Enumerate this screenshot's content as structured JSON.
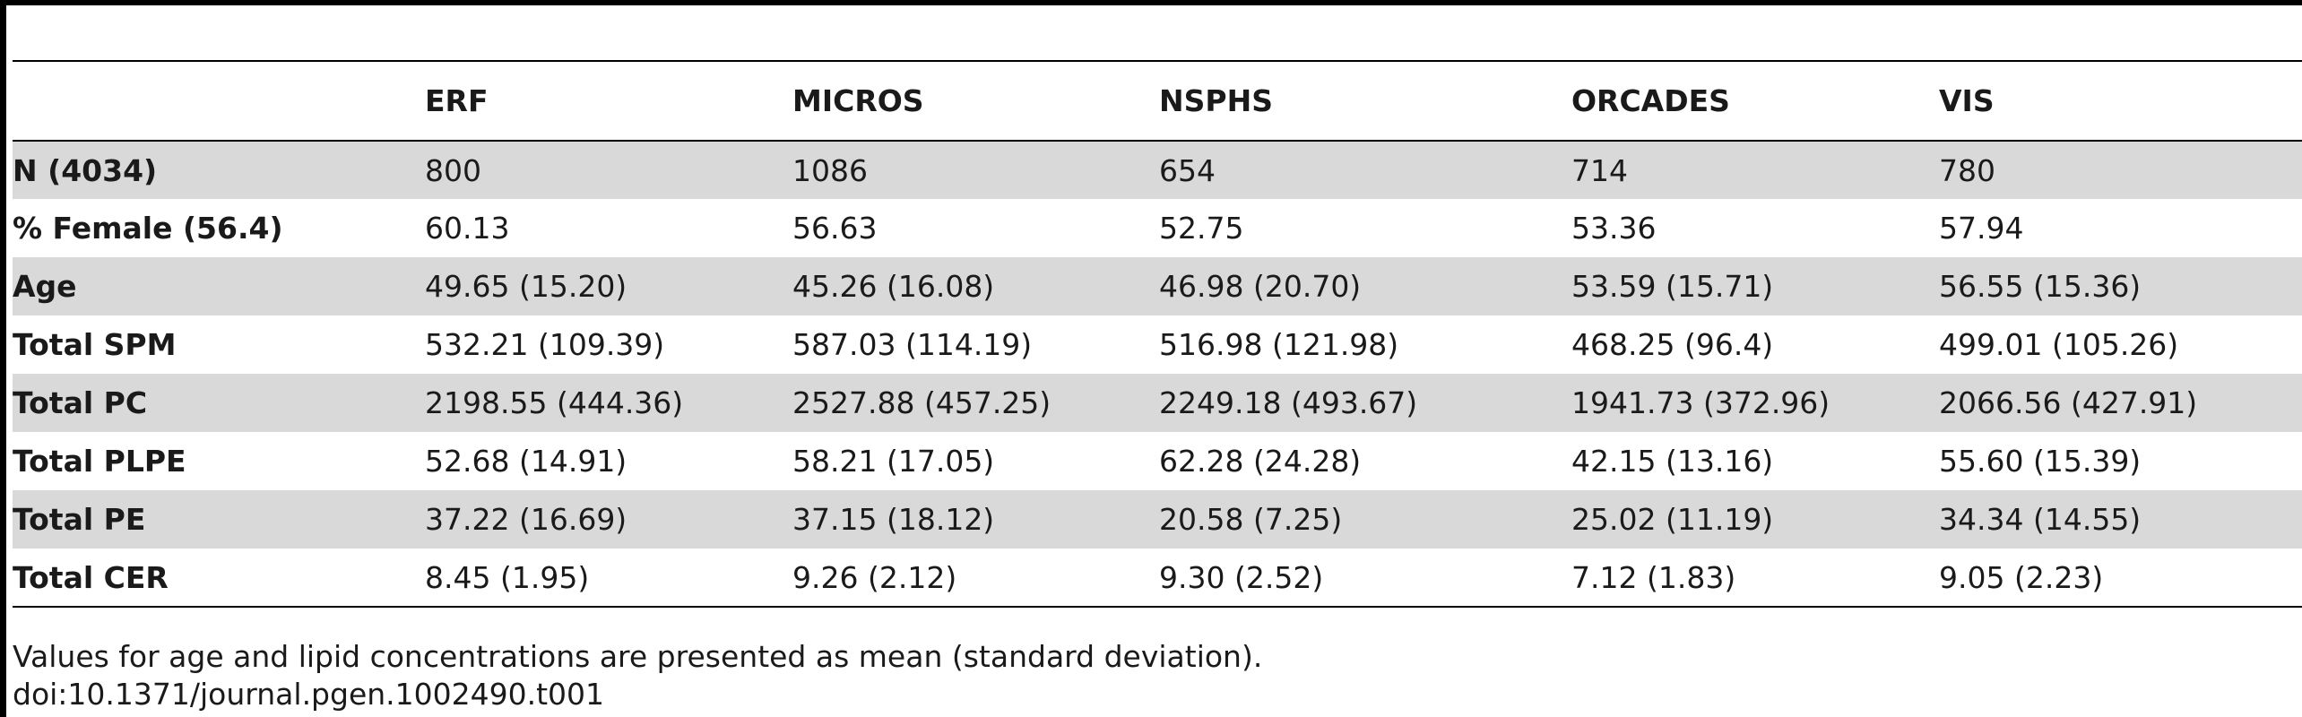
{
  "table": {
    "columns": [
      "",
      "ERF",
      "MICROS",
      "NSPHS",
      "ORCADES",
      "VIS"
    ],
    "rows": [
      [
        "N (4034)",
        "800",
        "1086",
        "654",
        "714",
        "780"
      ],
      [
        "% Female (56.4)",
        "60.13",
        "56.63",
        "52.75",
        "53.36",
        "57.94"
      ],
      [
        "Age",
        "49.65 (15.20)",
        "45.26 (16.08)",
        "46.98 (20.70)",
        "53.59 (15.71)",
        "56.55 (15.36)"
      ],
      [
        "Total SPM",
        "532.21 (109.39)",
        "587.03 (114.19)",
        "516.98 (121.98)",
        "468.25 (96.4)",
        "499.01 (105.26)"
      ],
      [
        "Total PC",
        "2198.55 (444.36)",
        "2527.88 (457.25)",
        "2249.18 (493.67)",
        "1941.73 (372.96)",
        "2066.56 (427.91)"
      ],
      [
        "Total PLPE",
        "52.68 (14.91)",
        "58.21 (17.05)",
        "62.28 (24.28)",
        "42.15 (13.16)",
        "55.60 (15.39)"
      ],
      [
        "Total PE",
        "37.22 (16.69)",
        "37.15 (18.12)",
        "20.58 (7.25)",
        "25.02 (11.19)",
        "34.34 (14.55)"
      ],
      [
        "Total CER",
        "8.45 (1.95)",
        "9.26 (2.12)",
        "9.30 (2.52)",
        "7.12 (1.83)",
        "9.05 (2.23)"
      ]
    ]
  },
  "footnote": {
    "note": "Values for age and lipid concentrations are presented as mean (standard deviation).",
    "doi": "doi:10.1371/journal.pgen.1002490.t001"
  }
}
